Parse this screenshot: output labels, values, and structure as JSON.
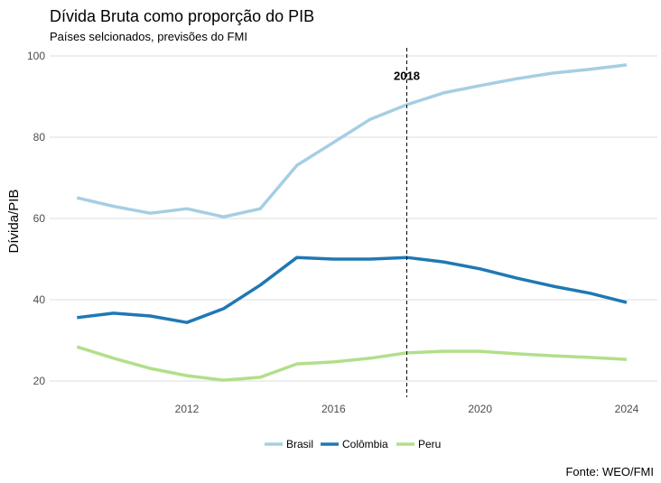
{
  "chart_data": {
    "type": "line",
    "title": "Dívida Bruta como proporção do PIB",
    "subtitle": "Países selcionados, previsões do FMI",
    "caption": "Fonte: WEO/FMI",
    "xlabel": "",
    "ylabel": "Dívida/PIB",
    "xlim": [
      2009,
      2024
    ],
    "ylim": [
      20,
      100
    ],
    "x_ticks": [
      2012,
      2016,
      2020,
      2024
    ],
    "y_ticks": [
      20,
      40,
      60,
      80,
      100
    ],
    "grid": true,
    "legend_position": "bottom",
    "annotation": {
      "x": 2018,
      "label": "2018",
      "y": 95
    },
    "x": [
      2009,
      2010,
      2011,
      2012,
      2013,
      2014,
      2015,
      2016,
      2017,
      2018,
      2019,
      2020,
      2021,
      2022,
      2023,
      2024
    ],
    "series": [
      {
        "name": "Brasil",
        "color": "#a6cee3",
        "values": [
          65.1,
          63.0,
          61.3,
          62.4,
          60.4,
          62.4,
          73.1,
          78.7,
          84.4,
          88.0,
          90.9,
          92.7,
          94.4,
          95.8,
          96.7,
          97.8
        ]
      },
      {
        "name": "Colômbia",
        "color": "#1f78b4",
        "values": [
          35.6,
          36.7,
          36.0,
          34.4,
          37.8,
          43.6,
          50.4,
          50.0,
          50.0,
          50.4,
          49.3,
          47.6,
          45.3,
          43.3,
          41.6,
          39.3
        ]
      },
      {
        "name": "Peru",
        "color": "#b2df8a",
        "values": [
          28.4,
          25.6,
          23.1,
          21.3,
          20.2,
          20.9,
          24.2,
          24.7,
          25.6,
          26.9,
          27.3,
          27.3,
          26.7,
          26.2,
          25.8,
          25.3
        ]
      }
    ]
  }
}
